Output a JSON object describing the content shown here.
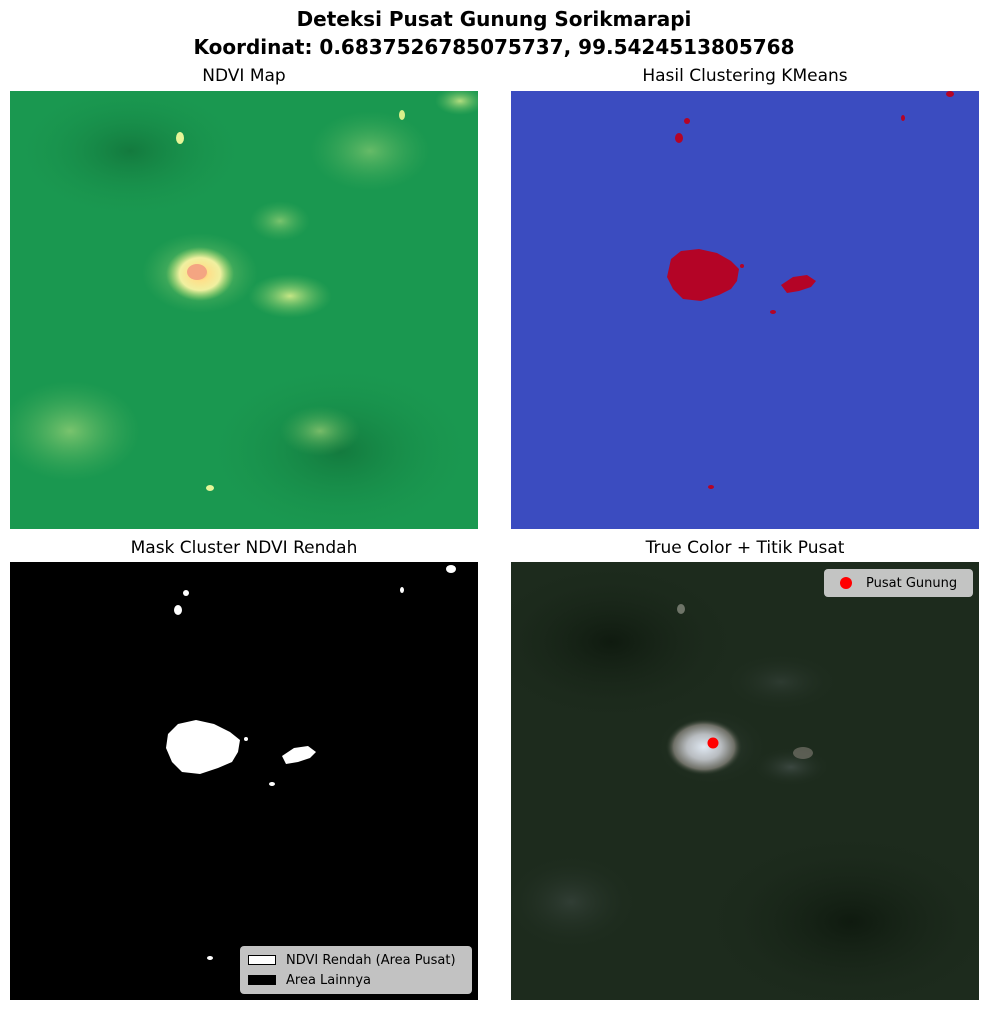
{
  "figure": {
    "title_line1": "Deteksi Pusat Gunung Sorikmarapi",
    "title_line2": "Koordinat: 0.6837526785075737, 99.5424513805768"
  },
  "panels": [
    {
      "title": "NDVI Map"
    },
    {
      "title": "Hasil Clustering KMeans"
    },
    {
      "title": "Mask Cluster NDVI Rendah"
    },
    {
      "title": "True Color + Titik Pusat"
    }
  ],
  "legends": {
    "mask": [
      {
        "label": "NDVI Rendah (Area Pusat)",
        "color": "#ffffff"
      },
      {
        "label": "Area Lainnya",
        "color": "#000000"
      }
    ],
    "truecolor": [
      {
        "label": "Pusat Gunung",
        "color": "#ff0000"
      }
    ]
  },
  "colors": {
    "ndvi_background": "#1a9850",
    "kmeans_background": "#3b4cc0",
    "kmeans_cluster": "#b40426",
    "center_marker": "#ff0000"
  }
}
